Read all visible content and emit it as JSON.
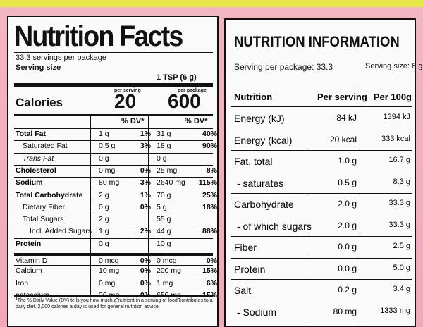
{
  "left": {
    "title": "Nutrition Facts",
    "servings": "33.3 servings per package",
    "serving_size_label": "Serving size",
    "serving_size": "1 TSP (6 g)",
    "calories_label": "Calories",
    "per_serving_label": "per serving",
    "per_package_label": "per package",
    "calories_serving": "20",
    "calories_package": "600",
    "dv_header": "% DV*",
    "rows": [
      {
        "name": "Total Fat",
        "serving": "1 g",
        "serving_dv": "1%",
        "package": "31 g",
        "package_dv": "40%"
      },
      {
        "name": "Saturated Fat",
        "serving": "0.5 g",
        "serving_dv": "3%",
        "package": "18 g",
        "package_dv": "90%"
      },
      {
        "name": "Trans Fat",
        "serving": "0 g",
        "package": "0 g"
      },
      {
        "name": "Cholesterol",
        "serving": "0 mg",
        "serving_dv": "0%",
        "package": "25 mg",
        "package_dv": "8%"
      },
      {
        "name": "Sodium",
        "serving": "80 mg",
        "serving_dv": "3%",
        "package": "2640 mg",
        "package_dv": "115%"
      },
      {
        "name": "Total Carbohydrate",
        "serving": "2 g",
        "serving_dv": "1%",
        "package": "70 g",
        "package_dv": "25%"
      },
      {
        "name": "Dietary Fiber",
        "serving": "0 g",
        "serving_dv": "0%",
        "package": "5 g",
        "package_dv": "18%"
      },
      {
        "name": "Total Sugars",
        "serving": "2 g",
        "package": "55 g"
      },
      {
        "name": "Incl. Added Sugars",
        "serving": "1 g",
        "serving_dv": "2%",
        "package": "44 g",
        "package_dv": "88%"
      },
      {
        "name": "Protein",
        "serving": "0 g",
        "package": "10 g"
      },
      {
        "name": "Vitamin D",
        "serving": "0 mcg",
        "serving_dv": "0%",
        "package": "0 mcg",
        "package_dv": "0%"
      },
      {
        "name": "Calcium",
        "serving": "10 mg",
        "serving_dv": "0%",
        "package": "200 mg",
        "package_dv": "15%"
      },
      {
        "name": "Iron",
        "serving": "0 mg",
        "serving_dv": "0%",
        "package": "1 mg",
        "package_dv": "6%"
      },
      {
        "name": "potassium",
        "serving": "20 mg",
        "serving_dv": "0%",
        "package": "650 mg",
        "package_dv": "15%"
      }
    ],
    "footnote": "*The % Daily Value (DV) tells you how much a nutrient in a serving of food contributes to a daily diet. 2,000 calories a day is used for general nutrition advice."
  },
  "right": {
    "title": "NUTRITION INFORMATION",
    "servings": "Serving per package: 33.3",
    "serving_size": "Serving size: 6 g",
    "header": [
      "Nutrition",
      "Per serving",
      "Per 100g"
    ],
    "rows": [
      [
        "Energy (kJ)",
        "84 kJ",
        "1394 kJ"
      ],
      [
        "Energy (kcal)",
        "20 kcal",
        "333 kcal"
      ],
      [
        "Fat, total",
        "1.0 g",
        "16.7 g"
      ],
      [
        "- saturates",
        "0.5 g",
        "8.3 g"
      ],
      [
        "Carbohydrate",
        "2.0 g",
        "33.3 g"
      ],
      [
        "- of which sugars",
        "2.0 g",
        "33.3 g"
      ],
      [
        "Fiber",
        "0.0 g",
        "2.5 g"
      ],
      [
        "Protein",
        "0.0 g",
        "5.0 g"
      ],
      [
        "Salt",
        "0.2 g",
        "3.4 g"
      ],
      [
        "- Sodium",
        "80 mg",
        "1333 mg"
      ]
    ]
  }
}
